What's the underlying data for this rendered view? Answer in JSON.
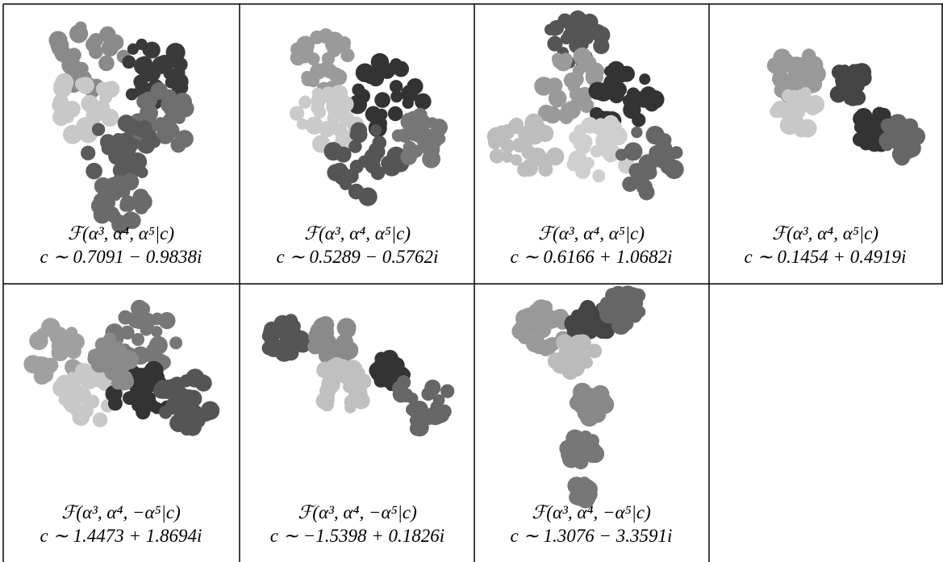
{
  "cells": [
    {
      "formula": "ℱ(α³, α⁴, α⁵|c)",
      "c": "c ∼ 0.7091 − 0.9838i"
    },
    {
      "formula": "ℱ(α³, α⁴, α⁵|c)",
      "c": "c ∼ 0.5289 − 0.5762i"
    },
    {
      "formula": "ℱ(α³, α⁴, α⁵|c)",
      "c": "c ∼ 0.6166 + 1.0682i"
    },
    {
      "formula": "ℱ(α³, α⁴, α⁵|c)",
      "c": "c ∼ 0.1454 + 0.4919i"
    },
    {
      "formula": "ℱ(α³, α⁴, −α⁵|c)",
      "c": "c ∼ 1.4473 + 1.8694i"
    },
    {
      "formula": "ℱ(α³, α⁴, −α⁵|c)",
      "c": "c ∼ −1.5398 + 0.1826i"
    },
    {
      "formula": "ℱ(α³, α⁴, −α⁵|c)",
      "c": "c ∼ 1.3076 − 3.3591i"
    }
  ]
}
